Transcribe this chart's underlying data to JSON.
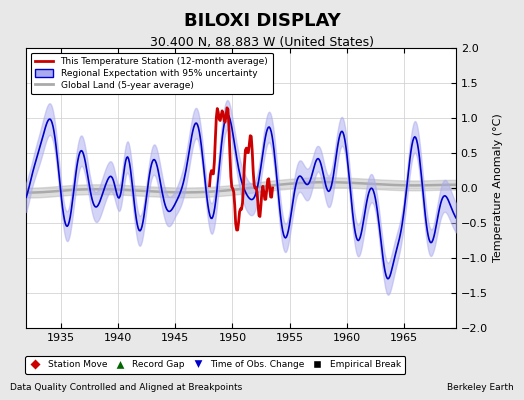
{
  "title": "BILOXI DISPLAY",
  "subtitle": "30.400 N, 88.883 W (United States)",
  "ylabel": "Temperature Anomaly (°C)",
  "xlabel_left": "Data Quality Controlled and Aligned at Breakpoints",
  "xlabel_right": "Berkeley Earth",
  "ylim": [
    -2,
    2
  ],
  "xlim": [
    1932,
    1969.5
  ],
  "xticks": [
    1935,
    1940,
    1945,
    1950,
    1955,
    1960,
    1965
  ],
  "yticks": [
    -2,
    -1.5,
    -1,
    -0.5,
    0,
    0.5,
    1,
    1.5,
    2
  ],
  "bg_color": "#e8e8e8",
  "plot_bg_color": "#ffffff",
  "grid_color": "#cccccc",
  "red_color": "#cc0000",
  "blue_color": "#0000cc",
  "blue_fill_color": "#aaaaee",
  "gray_color": "#aaaaaa",
  "legend1_entries": [
    {
      "label": "This Temperature Station (12-month average)",
      "color": "#cc0000",
      "lw": 2
    },
    {
      "label": "Regional Expectation with 95% uncertainty",
      "color": "#0000cc",
      "lw": 1.5
    },
    {
      "label": "Global Land (5-year average)",
      "color": "#aaaaaa",
      "lw": 2
    }
  ],
  "legend2_entries": [
    {
      "label": "Station Move",
      "marker": "D",
      "color": "#cc0000"
    },
    {
      "label": "Record Gap",
      "marker": "^",
      "color": "#006600"
    },
    {
      "label": "Time of Obs. Change",
      "marker": "v",
      "color": "#0000cc"
    },
    {
      "label": "Empirical Break",
      "marker": "s",
      "color": "#000000"
    }
  ]
}
